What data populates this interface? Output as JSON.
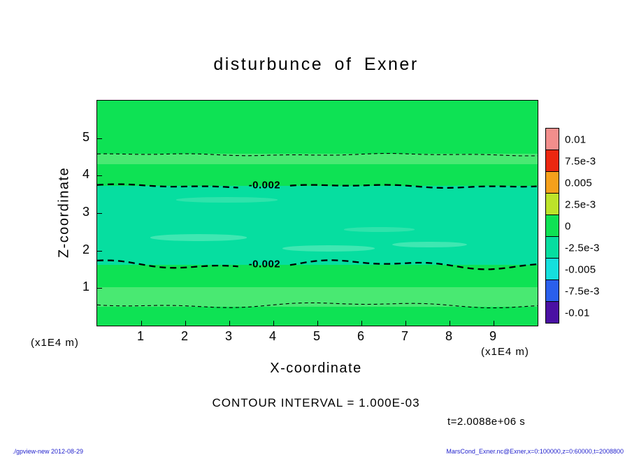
{
  "title": "disturbunce of Exner",
  "axes": {
    "x_label": "X-coordinate",
    "y_label": "Z-coordinate",
    "x_unit": "(x1E4 m)",
    "y_unit": "(x1E4 m)"
  },
  "annotations": {
    "contour_interval": "CONTOUR INTERVAL = 1.000E-03",
    "time": "t=2.0088e+06 s"
  },
  "footer": {
    "left": "./gpview-new  2012-08-29",
    "right": "MarsCond_Exner.nc@Exner,x=0:100000,z=0:60000,t=2008800"
  },
  "chart_data": {
    "type": "heatmap",
    "title": "disturbunce of Exner",
    "xlabel": "X-coordinate",
    "ylabel": "Z-coordinate",
    "x_unit": "(x1E4 m)",
    "y_unit": "(x1E4 m)",
    "xlim": [
      0,
      10
    ],
    "ylim": [
      0,
      6
    ],
    "x_ticks": [
      1,
      2,
      3,
      4,
      5,
      6,
      7,
      8,
      9
    ],
    "y_ticks": [
      1,
      2,
      3,
      4,
      5
    ],
    "grid": false,
    "contour_interval": 0.001,
    "time_label": "t=2.0088e+06 s",
    "colorbar": {
      "position": "right",
      "labels": [
        "0.01",
        "7.5e-3",
        "0.005",
        "2.5e-3",
        "0",
        "-2.5e-3",
        "-0.005",
        "-7.5e-3",
        "-0.01"
      ],
      "values": [
        0.01,
        0.0075,
        0.005,
        0.0025,
        0,
        -0.0025,
        -0.005,
        -0.0075,
        -0.01
      ],
      "colors": [
        "#f28e8c",
        "#eb2710",
        "#f5a01c",
        "#bde32a",
        "#0ee254",
        "#06dea0",
        "#15dfdd",
        "#2a5fec",
        "#4a10a3"
      ]
    },
    "contour_lines": [
      {
        "value": -0.001,
        "z": 4.56,
        "style": "thin",
        "label": null,
        "label_x": null
      },
      {
        "value": -0.002,
        "z": 3.72,
        "style": "bold",
        "label": "-0.002",
        "label_x": 3.8
      },
      {
        "value": -0.002,
        "z": 1.63,
        "style": "bold",
        "label": "-0.002",
        "label_x": 3.8
      },
      {
        "value": -0.001,
        "z": 0.55,
        "style": "thin",
        "label": null,
        "label_x": null
      }
    ],
    "fill_bands": [
      {
        "z_from": 0.0,
        "z_to": 0.5,
        "color": "#0ee254"
      },
      {
        "z_from": 0.5,
        "z_to": 1.02,
        "color": "#49e972"
      },
      {
        "z_from": 1.02,
        "z_to": 1.63,
        "color": "#0ee254"
      },
      {
        "z_from": 1.63,
        "z_to": 3.72,
        "color": "#06dea0"
      },
      {
        "z_from": 3.72,
        "z_to": 4.3,
        "color": "#0ee254"
      },
      {
        "z_from": 4.3,
        "z_to": 4.58,
        "color": "#49e972"
      },
      {
        "z_from": 4.58,
        "z_to": 6.0,
        "color": "#0ee254"
      }
    ],
    "fill_patches": [
      {
        "x_from": 1.2,
        "x_to": 3.4,
        "z_from": 2.26,
        "z_to": 2.44,
        "color": "#3fe7b2"
      },
      {
        "x_from": 4.2,
        "x_to": 6.3,
        "z_from": 1.98,
        "z_to": 2.14,
        "color": "#3fe7b2"
      },
      {
        "x_from": 6.7,
        "x_to": 8.4,
        "z_from": 2.08,
        "z_to": 2.24,
        "color": "#3fe7b2"
      },
      {
        "x_from": 1.8,
        "x_to": 4.1,
        "z_from": 3.28,
        "z_to": 3.42,
        "color": "#2ee3ab"
      },
      {
        "x_from": 5.6,
        "x_to": 7.2,
        "z_from": 2.5,
        "z_to": 2.62,
        "color": "#2ee3ab"
      }
    ]
  }
}
